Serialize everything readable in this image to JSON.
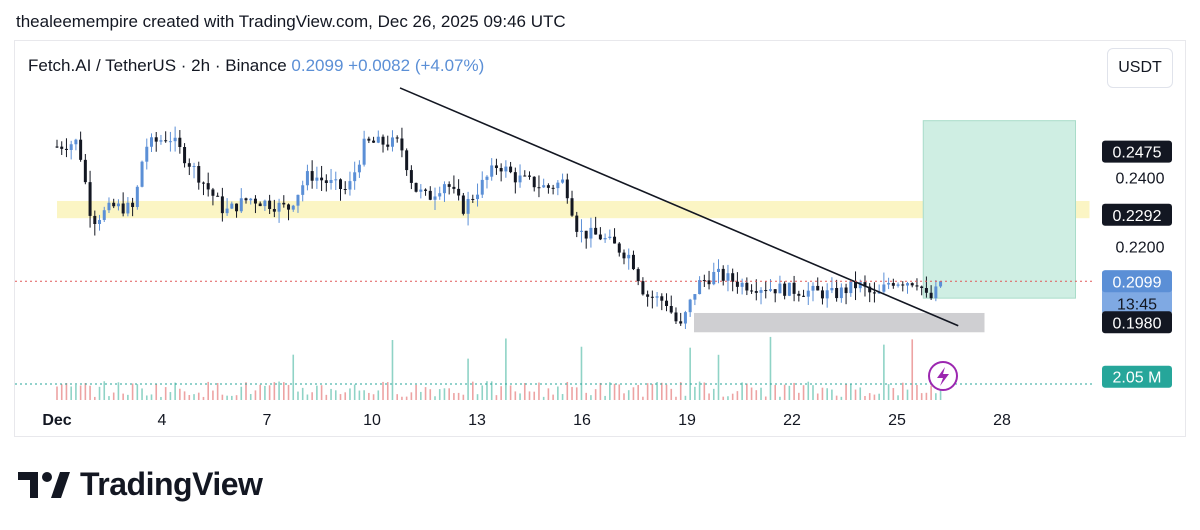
{
  "header": {
    "attribution": "thealeemempire created with TradingView.com, Dec 26, 2025 09:46 UTC"
  },
  "symbol": {
    "name": "Fetch.AI / TetherUS",
    "interval": "2h",
    "exchange": "Binance",
    "separator": "·",
    "last_price": "0.2099",
    "change": "+0.0082",
    "change_pct": "(+4.07%)"
  },
  "currency_button": "USDT",
  "brand": {
    "name": "TradingView"
  },
  "colors": {
    "up": "#5b8fd6",
    "down": "#131722",
    "trendline": "#131722",
    "resistance_zone": "#fbf5c4",
    "support_zone": "#cfcfd2",
    "target_zone": "#cfeee3",
    "price_dotted": "#e05a5a",
    "volume_up": "#8fd3c6",
    "volume_down": "#eda3a3",
    "price_tag_blue": "#5b8fd6",
    "label_black": "#131722",
    "volume_tag": "#26a69a"
  },
  "chart_data": {
    "type": "candlestick",
    "pair": "FET/USDT",
    "timeframe": "2h",
    "x_axis": {
      "ticks": [
        {
          "label": "Dec",
          "day": 1
        },
        {
          "label": "4",
          "day": 4
        },
        {
          "label": "7",
          "day": 7
        },
        {
          "label": "10",
          "day": 10
        },
        {
          "label": "13",
          "day": 13
        },
        {
          "label": "16",
          "day": 16
        },
        {
          "label": "19",
          "day": 19
        },
        {
          "label": "22",
          "day": 22
        },
        {
          "label": "25",
          "day": 25
        },
        {
          "label": "28",
          "day": 28
        }
      ]
    },
    "y_axis": {
      "ticks": [
        "0.2400",
        "0.2200"
      ],
      "tick_values": [
        0.24,
        0.22
      ],
      "range": [
        0.1798,
        0.2683
      ]
    },
    "price_labels": [
      {
        "label": "0.2475",
        "value": 0.2475,
        "style": "black"
      },
      {
        "label": "0.2292",
        "value": 0.2292,
        "style": "black"
      },
      {
        "label": "0.2099",
        "value": 0.2099,
        "sub": "13:45",
        "style": "blue"
      },
      {
        "label": "0.1980",
        "value": 0.198,
        "style": "black"
      },
      {
        "label": "2.05 M",
        "value": 0.1822,
        "style": "volume"
      }
    ],
    "current_price": 0.2099,
    "zones": [
      {
        "name": "resistance",
        "day_from": 1,
        "day_to": 30.5,
        "low": 0.2282,
        "high": 0.2332
      },
      {
        "name": "support",
        "day_from": 19.2,
        "day_to": 27.5,
        "low": 0.1951,
        "high": 0.2007
      },
      {
        "name": "target",
        "day_from": 25.75,
        "day_to": 30.1,
        "low": 0.205,
        "high": 0.2565
      }
    ],
    "trendline": {
      "from": {
        "day": 10.8,
        "price": 0.266
      },
      "to": {
        "day": 26.75,
        "price": 0.197
      }
    },
    "anchors": [
      [
        1.0,
        0.249
      ],
      [
        1.6,
        0.2505
      ],
      [
        2.0,
        0.2275
      ],
      [
        2.6,
        0.2315
      ],
      [
        3.2,
        0.231
      ],
      [
        3.5,
        0.249
      ],
      [
        4.2,
        0.252
      ],
      [
        4.8,
        0.244
      ],
      [
        5.8,
        0.23
      ],
      [
        6.5,
        0.234
      ],
      [
        7.6,
        0.231
      ],
      [
        8.2,
        0.241
      ],
      [
        9.3,
        0.236
      ],
      [
        9.8,
        0.25
      ],
      [
        10.8,
        0.25
      ],
      [
        11.2,
        0.237
      ],
      [
        11.6,
        0.234
      ],
      [
        12.1,
        0.239
      ],
      [
        12.6,
        0.231
      ],
      [
        13.6,
        0.244
      ],
      [
        14.1,
        0.24
      ],
      [
        15.0,
        0.237
      ],
      [
        15.5,
        0.239
      ],
      [
        15.9,
        0.224
      ],
      [
        16.5,
        0.223
      ],
      [
        17.4,
        0.217
      ],
      [
        17.8,
        0.206
      ],
      [
        18.4,
        0.204
      ],
      [
        18.8,
        0.196
      ],
      [
        19.3,
        0.209
      ],
      [
        19.8,
        0.212
      ],
      [
        20.6,
        0.209
      ],
      [
        21.4,
        0.208
      ],
      [
        22.4,
        0.207
      ],
      [
        23.2,
        0.206
      ],
      [
        23.9,
        0.209
      ],
      [
        24.4,
        0.205
      ],
      [
        24.8,
        0.21
      ],
      [
        25.6,
        0.21
      ],
      [
        25.9,
        0.204
      ],
      [
        26.35,
        0.2099
      ]
    ],
    "candle_step_days": 0.135,
    "volume_note": "volume histogram shown at bottom of pane"
  }
}
